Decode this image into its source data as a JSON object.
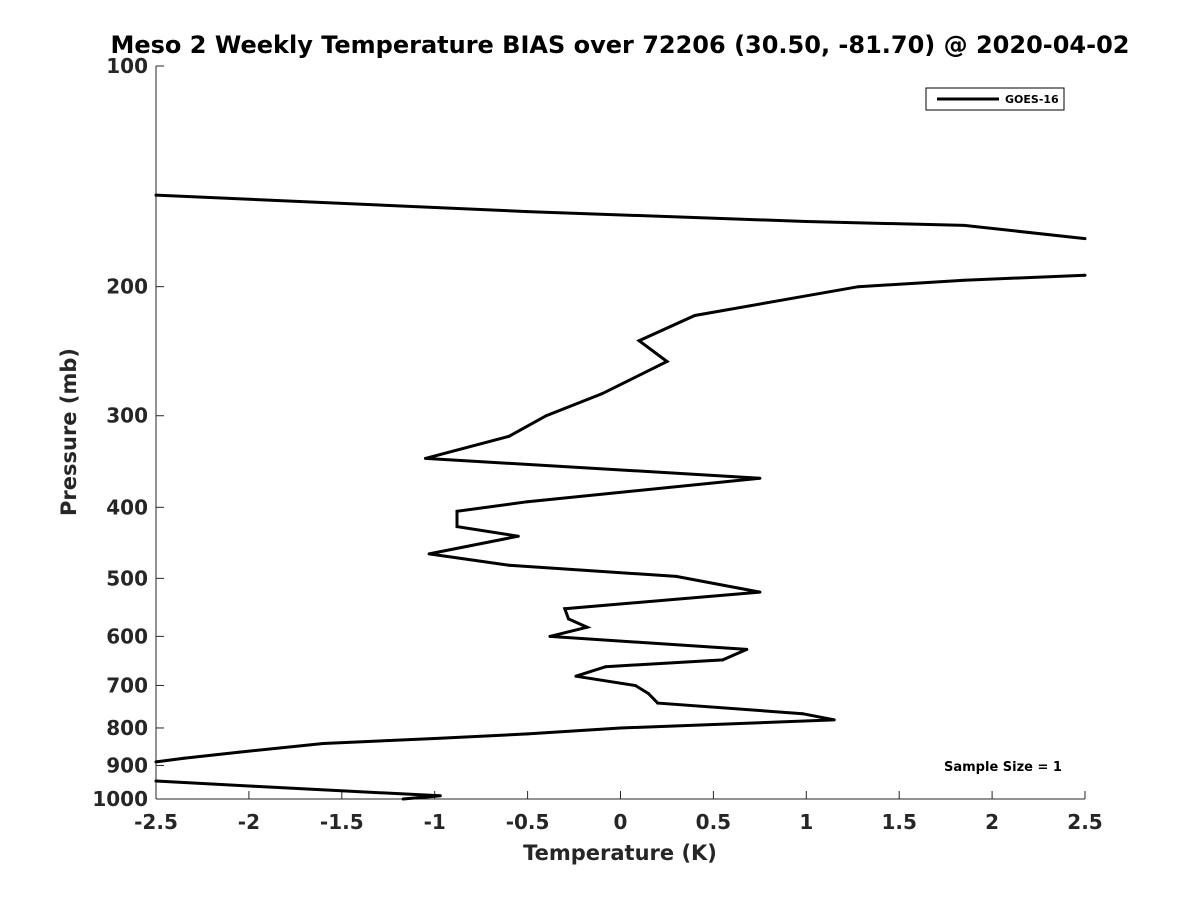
{
  "chart_data": {
    "type": "line",
    "title": "Meso 2 Weekly Temperature BIAS over 72206 (30.50, -81.70) @ 2020-04-02",
    "xlabel": "Temperature (K)",
    "ylabel": "Pressure (mb)",
    "xlim": [
      -2.5,
      2.5
    ],
    "ylim": [
      100,
      1000
    ],
    "y_scale": "log",
    "y_reversed": true,
    "grid": false,
    "x_ticks": [
      -2.5,
      -2,
      -1.5,
      -1,
      -0.5,
      0,
      0.5,
      1,
      1.5,
      2,
      2.5
    ],
    "x_tick_labels": [
      "-2.5",
      "-2",
      "-1.5",
      "-1",
      "-0.5",
      "0",
      "0.5",
      "1",
      "1.5",
      "2",
      "2.5"
    ],
    "y_ticks": [
      100,
      200,
      300,
      400,
      500,
      600,
      700,
      800,
      900,
      1000
    ],
    "y_tick_labels": [
      "100",
      "200",
      "300",
      "400",
      "500",
      "600",
      "700",
      "800",
      "900",
      "1000"
    ],
    "legend": {
      "position": "top-right",
      "entries": [
        "GOES-16"
      ]
    },
    "annotation": "Sample Size = 1",
    "series": [
      {
        "name": "GOES-16",
        "color": "#000000",
        "segments": [
          [
            [
              -2.5,
              150
            ],
            [
              -0.5,
              158
            ],
            [
              1.0,
              163
            ],
            [
              1.85,
              165
            ],
            [
              2.5,
              172
            ]
          ],
          [
            [
              2.5,
              193
            ],
            [
              1.85,
              196
            ],
            [
              1.28,
              200
            ],
            [
              0.4,
              219
            ],
            [
              0.1,
              237
            ],
            [
              0.25,
              253
            ],
            [
              -0.1,
              280
            ],
            [
              -0.4,
              300
            ],
            [
              -0.6,
              320
            ],
            [
              -1.05,
              343
            ],
            [
              0.75,
              365
            ],
            [
              -0.5,
              393
            ],
            [
              -0.88,
              405
            ],
            [
              -0.88,
              425
            ],
            [
              -0.55,
              438
            ],
            [
              -1.03,
              463
            ],
            [
              -0.6,
              480
            ],
            [
              0.3,
              497
            ],
            [
              0.75,
              522
            ],
            [
              -0.3,
              550
            ],
            [
              -0.28,
              568
            ],
            [
              -0.18,
              583
            ],
            [
              -0.38,
              600
            ],
            [
              0.68,
              625
            ],
            [
              0.55,
              646
            ],
            [
              -0.08,
              660
            ],
            [
              -0.24,
              680
            ],
            [
              0.08,
              700
            ],
            [
              0.15,
              718
            ],
            [
              0.2,
              740
            ],
            [
              0.98,
              765
            ],
            [
              1.15,
              780
            ],
            [
              0.0,
              800
            ],
            [
              -0.5,
              815
            ],
            [
              -1.0,
              827
            ],
            [
              -1.6,
              840
            ],
            [
              -2.05,
              863
            ],
            [
              -2.35,
              880
            ],
            [
              -2.5,
              890
            ]
          ],
          [
            [
              -2.5,
              945
            ],
            [
              -2.0,
              960
            ],
            [
              -0.97,
              990
            ],
            [
              -1.17,
              1000
            ]
          ]
        ]
      }
    ]
  }
}
